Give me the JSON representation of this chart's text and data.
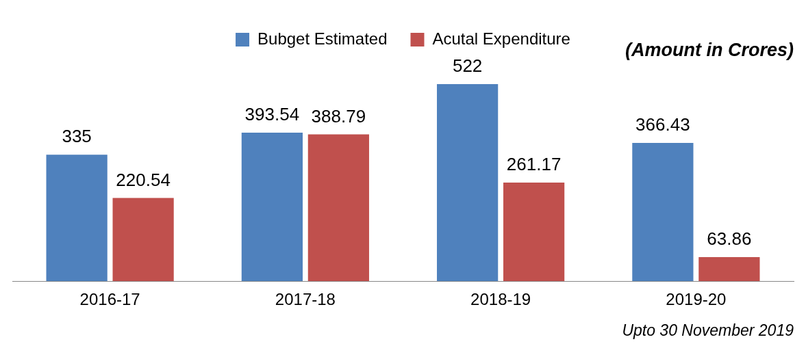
{
  "chart_data": {
    "type": "bar",
    "categories": [
      "2016-17",
      "2017-18",
      "2018-19",
      "2019-20"
    ],
    "series": [
      {
        "name": "Bubget Estimated",
        "color": "#4f81bd",
        "values": [
          335,
          393.54,
          522,
          366.43
        ]
      },
      {
        "name": "Acutal Expenditure",
        "color": "#c0504d",
        "values": [
          220.54,
          388.79,
          261.17,
          63.86
        ]
      }
    ],
    "data_labels": true,
    "legend": "top",
    "grid": false,
    "annotations": [
      "(Amount in Crores)",
      "Upto 30 November 2019"
    ]
  }
}
